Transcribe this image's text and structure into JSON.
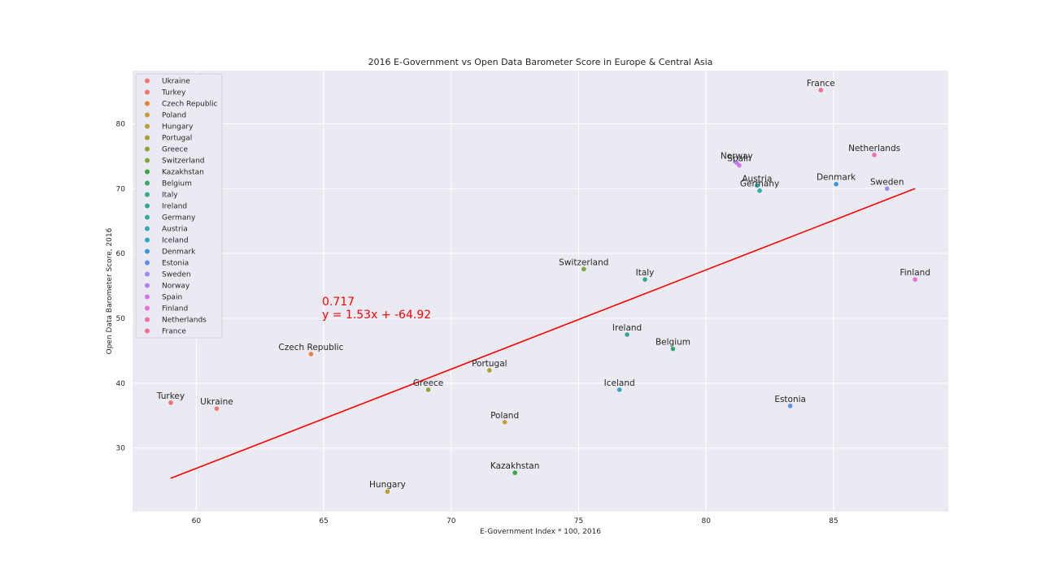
{
  "chart_data": {
    "type": "scatter",
    "title": "2016 E-Government vs Open Data Barometer Score in Europe & Central Asia",
    "xlabel": "E-Government Index * 100, 2016",
    "ylabel": "Open Data Barometer Score, 2016",
    "xlim": [
      57.5,
      89.5
    ],
    "ylim": [
      20.2,
      88.2
    ],
    "xticks": [
      60,
      65,
      70,
      75,
      80,
      85
    ],
    "yticks": [
      30,
      40,
      50,
      60,
      70,
      80
    ],
    "grid": true,
    "legend_position": "upper-left",
    "points": [
      {
        "name": "Ukraine",
        "x": 60.8,
        "y": 36.1,
        "color": "#f8766d"
      },
      {
        "name": "Turkey",
        "x": 59.0,
        "y": 37.0,
        "color": "#f4726a"
      },
      {
        "name": "Czech Republic",
        "x": 64.5,
        "y": 44.5,
        "color": "#e8833a"
      },
      {
        "name": "Poland",
        "x": 72.1,
        "y": 34.0,
        "color": "#c99c3a"
      },
      {
        "name": "Hungary",
        "x": 67.5,
        "y": 23.3,
        "color": "#b79f30"
      },
      {
        "name": "Portugal",
        "x": 71.5,
        "y": 42.0,
        "color": "#a8a034"
      },
      {
        "name": "Greece",
        "x": 69.1,
        "y": 39.0,
        "color": "#94a035"
      },
      {
        "name": "Switzerland",
        "x": 75.2,
        "y": 57.6,
        "color": "#7aa83a"
      },
      {
        "name": "Kazakhstan",
        "x": 72.5,
        "y": 26.2,
        "color": "#3ba43e"
      },
      {
        "name": "Belgium",
        "x": 78.7,
        "y": 45.3,
        "color": "#35a86a"
      },
      {
        "name": "Italy",
        "x": 77.6,
        "y": 56.0,
        "color": "#34ab87"
      },
      {
        "name": "Ireland",
        "x": 76.9,
        "y": 47.5,
        "color": "#36a595"
      },
      {
        "name": "Germany",
        "x": 82.1,
        "y": 69.7,
        "color": "#36a8a5"
      },
      {
        "name": "Austria",
        "x": 82.0,
        "y": 70.5,
        "color": "#37a6b4"
      },
      {
        "name": "Iceland",
        "x": 76.6,
        "y": 39.0,
        "color": "#3aa2c2"
      },
      {
        "name": "Denmark",
        "x": 85.1,
        "y": 70.7,
        "color": "#3b98d6"
      },
      {
        "name": "Estonia",
        "x": 83.3,
        "y": 36.5,
        "color": "#5e8ef0"
      },
      {
        "name": "Sweden",
        "x": 87.1,
        "y": 70.0,
        "color": "#9c8bf5"
      },
      {
        "name": "Norway",
        "x": 81.2,
        "y": 74.0,
        "color": "#b682f2"
      },
      {
        "name": "Spain",
        "x": 81.3,
        "y": 73.6,
        "color": "#d674ee"
      },
      {
        "name": "Finland",
        "x": 88.2,
        "y": 56.0,
        "color": "#ea6ed6"
      },
      {
        "name": "Netherlands",
        "x": 86.6,
        "y": 75.2,
        "color": "#f26bb5"
      },
      {
        "name": "France",
        "x": 84.5,
        "y": 85.2,
        "color": "#f66c91"
      }
    ],
    "regression": {
      "x": [
        59.0,
        88.2
      ],
      "r_label": "0.717",
      "equation": "y = 1.53x + -64.92",
      "slope": 1.53,
      "intercept": -64.92,
      "color": "#ff0000"
    }
  }
}
